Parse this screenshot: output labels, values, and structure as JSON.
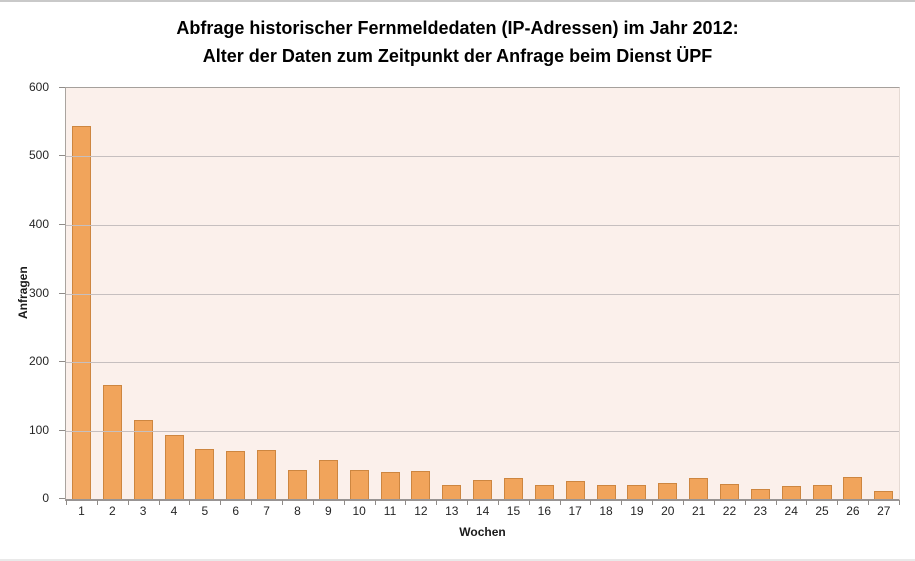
{
  "page": {
    "top_border_color": "#c9c9c9",
    "bottom_border_color": "#e9e9e9",
    "background": "#ffffff"
  },
  "chart_data": {
    "type": "bar",
    "title_line1": "Abfrage historischer Fernmeldedaten (IP-Adressen) im Jahr 2012:",
    "title_line2": "Alter der Daten zum Zeitpunkt der Anfrage beim Dienst ÜPF",
    "xlabel": "Wochen",
    "ylabel": "Anfragen",
    "categories": [
      "1",
      "2",
      "3",
      "4",
      "5",
      "6",
      "7",
      "8",
      "9",
      "10",
      "11",
      "12",
      "13",
      "14",
      "15",
      "16",
      "17",
      "18",
      "19",
      "20",
      "21",
      "22",
      "23",
      "24",
      "25",
      "26",
      "27"
    ],
    "values": [
      545,
      166,
      116,
      94,
      73,
      70,
      71,
      42,
      57,
      43,
      39,
      41,
      20,
      28,
      31,
      20,
      27,
      20,
      21,
      23,
      30,
      22,
      14,
      19,
      21,
      32,
      12
    ],
    "ylim": [
      0,
      600
    ],
    "yticks": [
      0,
      100,
      200,
      300,
      400,
      500,
      600
    ],
    "ytick_step": 100,
    "grid": "horizontal",
    "legend": "none",
    "colors": {
      "bar_fill": "#F1A45B",
      "bar_border": "#CD8640",
      "plot_background": "#FBF0EB",
      "gridline": "#c6bfbf",
      "axis_line": "#989493",
      "text": "#262626"
    }
  }
}
